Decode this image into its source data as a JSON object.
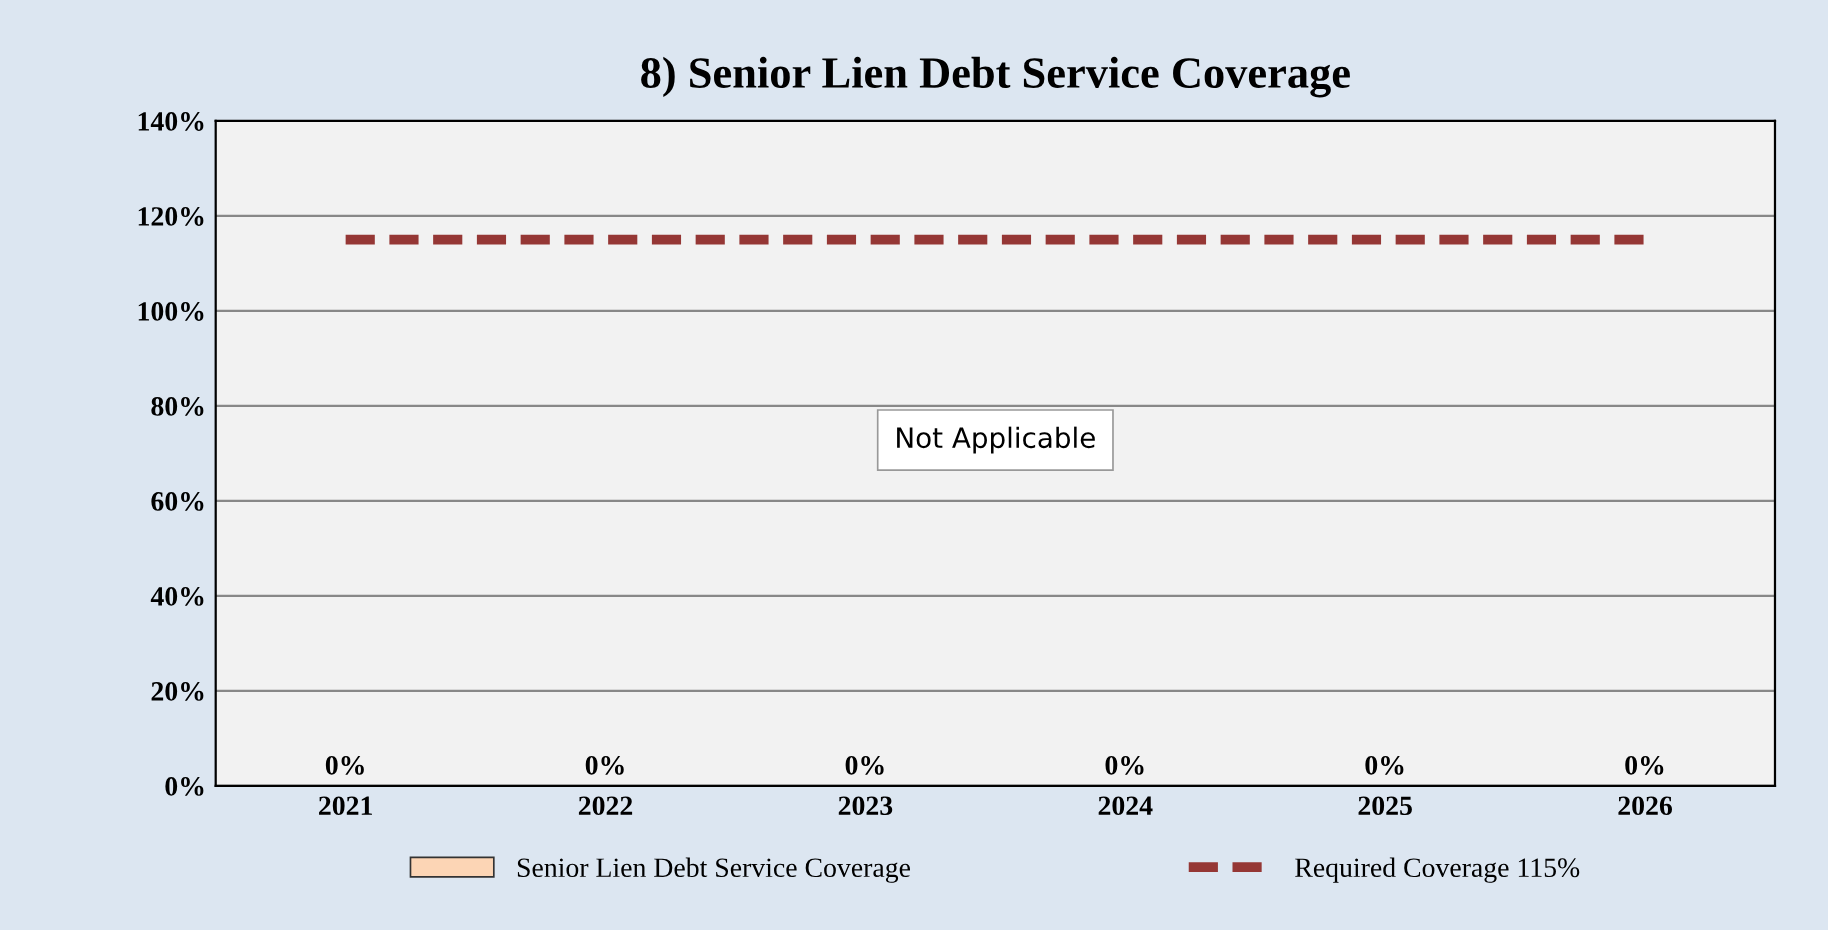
{
  "chart_data": {
    "type": "bar",
    "title": "8) Senior Lien Debt Service Coverage",
    "categories": [
      "2021",
      "2022",
      "2023",
      "2024",
      "2025",
      "2026"
    ],
    "series": [
      {
        "name": "Senior Lien Debt Service Coverage",
        "color": "#fcd5b5",
        "values": [
          0,
          0,
          0,
          0,
          0,
          0
        ],
        "value_labels": [
          "0%",
          "0%",
          "0%",
          "0%",
          "0%",
          "0%"
        ]
      },
      {
        "name": "Required Coverage 115%",
        "type": "line",
        "color": "#953735",
        "line_style": "dashed",
        "values": [
          115,
          115,
          115,
          115,
          115,
          115
        ]
      }
    ],
    "ylim": [
      0,
      140
    ],
    "yticks": [
      {
        "value": 0,
        "label": "0%"
      },
      {
        "value": 20,
        "label": "20%"
      },
      {
        "value": 40,
        "label": "40%"
      },
      {
        "value": 60,
        "label": "60%"
      },
      {
        "value": 80,
        "label": "80%"
      },
      {
        "value": 100,
        "label": "100%"
      },
      {
        "value": 120,
        "label": "120%"
      },
      {
        "value": 140,
        "label": "140%"
      }
    ],
    "grid": "y",
    "legend": "bottom",
    "marker": "none",
    "annotations": [
      "Not Applicable"
    ]
  }
}
